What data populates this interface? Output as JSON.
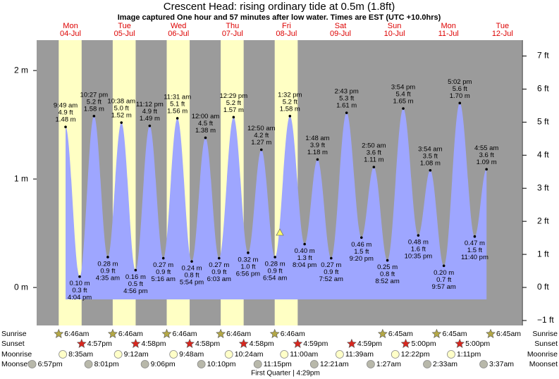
{
  "chart_data": {
    "type": "tide",
    "title": "Crescent Head: rising  ordinary tide at 0.5m (1.8ft)",
    "subtitle": "Image captured One hour and 57 minutes after low water. Times are EST (UTC +10.0hrs)",
    "days": [
      {
        "name": "Mon",
        "date": "04-Jul"
      },
      {
        "name": "Tue",
        "date": "05-Jul"
      },
      {
        "name": "Wed",
        "date": "06-Jul"
      },
      {
        "name": "Thu",
        "date": "07-Jul"
      },
      {
        "name": "Fri",
        "date": "08-Jul"
      },
      {
        "name": "Sat",
        "date": "09-Jul"
      },
      {
        "name": "Sun",
        "date": "10-Jul"
      },
      {
        "name": "Mon",
        "date": "11-Jul"
      },
      {
        "name": "Tue",
        "date": "12-Jul"
      }
    ],
    "ylim": [
      -0.35,
      2.28
    ],
    "yticks": [
      {
        "value": 0,
        "label": "0 m"
      },
      {
        "value": 1,
        "label": "1 m"
      },
      {
        "value": 2,
        "label": "2 m"
      }
    ],
    "y2lim": [
      -1.15,
      7.48
    ],
    "y2ticks": [
      {
        "value": -1,
        "label": "−1 ft"
      },
      {
        "value": 0,
        "label": "0 ft"
      },
      {
        "value": 1,
        "label": "1 ft"
      },
      {
        "value": 2,
        "label": "2 ft"
      },
      {
        "value": 3,
        "label": "3 ft"
      },
      {
        "value": 4,
        "label": "4 ft"
      },
      {
        "value": 5,
        "label": "5 ft"
      },
      {
        "value": 6,
        "label": "6 ft"
      },
      {
        "value": 7,
        "label": "7 ft"
      }
    ],
    "color": "#9ea6ff",
    "extremes": [
      {
        "time": "9:49 am",
        "m": 1.48,
        "m_label": "1.48 m",
        "ft_label": "4.9 ft"
      },
      {
        "time": "4:04 pm",
        "m": 0.1,
        "m_label": "0.10 m",
        "ft_label": "0.3 ft"
      },
      {
        "time": "10:27 pm",
        "m": 1.58,
        "m_label": "1.58 m",
        "ft_label": "5.2 ft"
      },
      {
        "time": "4:35 am",
        "m": 0.28,
        "m_label": "0.28 m",
        "ft_label": "0.9 ft"
      },
      {
        "time": "10:38 am",
        "m": 1.52,
        "m_label": "1.52 m",
        "ft_label": "5.0 ft"
      },
      {
        "time": "4:56 pm",
        "m": 0.16,
        "m_label": "0.16 m",
        "ft_label": "0.5 ft"
      },
      {
        "time": "11:12 pm",
        "m": 1.49,
        "m_label": "1.49 m",
        "ft_label": "4.9 ft"
      },
      {
        "time": "5:16 am",
        "m": 0.27,
        "m_label": "0.27 m",
        "ft_label": "0.9 ft"
      },
      {
        "time": "11:31 am",
        "m": 1.56,
        "m_label": "1.56 m",
        "ft_label": "5.1 ft"
      },
      {
        "time": "5:54 pm",
        "m": 0.24,
        "m_label": "0.24 m",
        "ft_label": "0.8 ft"
      },
      {
        "time": "12:00 am",
        "m": 1.38,
        "m_label": "1.38 m",
        "ft_label": "4.5 ft"
      },
      {
        "time": "6:03 am",
        "m": 0.27,
        "m_label": "0.27 m",
        "ft_label": "0.9 ft"
      },
      {
        "time": "12:29 pm",
        "m": 1.57,
        "m_label": "1.57 m",
        "ft_label": "5.2 ft"
      },
      {
        "time": "6:56 pm",
        "m": 0.32,
        "m_label": "0.32 m",
        "ft_label": "1.0 ft"
      },
      {
        "time": "12:50 am",
        "m": 1.27,
        "m_label": "1.27 m",
        "ft_label": "4.2 ft"
      },
      {
        "time": "6:54 am",
        "m": 0.28,
        "m_label": "0.28 m",
        "ft_label": "0.9 ft"
      },
      {
        "time": "1:32 pm",
        "m": 1.58,
        "m_label": "1.58 m",
        "ft_label": "5.2 ft"
      },
      {
        "time": "8:04 pm",
        "m": 0.4,
        "m_label": "0.40 m",
        "ft_label": "1.3 ft"
      },
      {
        "time": "1:48 am",
        "m": 1.18,
        "m_label": "1.18 m",
        "ft_label": "3.9 ft"
      },
      {
        "time": "7:52 am",
        "m": 0.27,
        "m_label": "0.27 m",
        "ft_label": "0.9 ft"
      },
      {
        "time": "2:43 pm",
        "m": 1.61,
        "m_label": "1.61 m",
        "ft_label": "5.3 ft"
      },
      {
        "time": "9:20 pm",
        "m": 0.46,
        "m_label": "0.46 m",
        "ft_label": "1.5 ft"
      },
      {
        "time": "2:50 am",
        "m": 1.11,
        "m_label": "1.11 m",
        "ft_label": "3.6 ft"
      },
      {
        "time": "8:52 am",
        "m": 0.25,
        "m_label": "0.25 m",
        "ft_label": "0.8 ft"
      },
      {
        "time": "3:54 pm",
        "m": 1.65,
        "m_label": "1.65 m",
        "ft_label": "5.4 ft"
      },
      {
        "time": "10:35 pm",
        "m": 0.48,
        "m_label": "0.48 m",
        "ft_label": "1.6 ft"
      },
      {
        "time": "3:54 am",
        "m": 1.08,
        "m_label": "1.08 m",
        "ft_label": "3.5 ft"
      },
      {
        "time": "9:57 am",
        "m": 0.2,
        "m_label": "0.20 m",
        "ft_label": "0.7 ft"
      },
      {
        "time": "5:02 pm",
        "m": 1.7,
        "m_label": "1.70 m",
        "ft_label": "5.6 ft"
      },
      {
        "time": "11:40 pm",
        "m": 0.47,
        "m_label": "0.47 m",
        "ft_label": "1.5 ft"
      },
      {
        "time": "4:55 am",
        "m": 1.09,
        "m_label": "1.09 m",
        "ft_label": "3.6 ft"
      }
    ]
  },
  "almanac": {
    "rows": [
      {
        "label": "Sunrise",
        "times": [
          "6:46am",
          "6:46am",
          "6:46am",
          "6:46am",
          "6:46am",
          "6:45am",
          "6:45am",
          "6:45am"
        ]
      },
      {
        "label": "Sunset",
        "times": [
          "4:57pm",
          "4:58pm",
          "4:58pm",
          "4:58pm",
          "4:59pm",
          "4:59pm",
          "5:00pm",
          "5:00pm"
        ]
      },
      {
        "label": "Moonrise",
        "times": [
          "8:35am",
          "9:12am",
          "9:48am",
          "10:24am",
          "11:00am",
          "11:39am",
          "12:22pm",
          "1:11pm"
        ]
      },
      {
        "label": "Moonset",
        "times": [
          "6:57pm",
          "8:01pm",
          "9:06pm",
          "10:10pm",
          "11:15pm",
          "12:21am",
          "1:27am",
          "2:33am",
          "3:37am"
        ]
      }
    ],
    "moon_phase": "First Quarter | 4:29pm"
  }
}
